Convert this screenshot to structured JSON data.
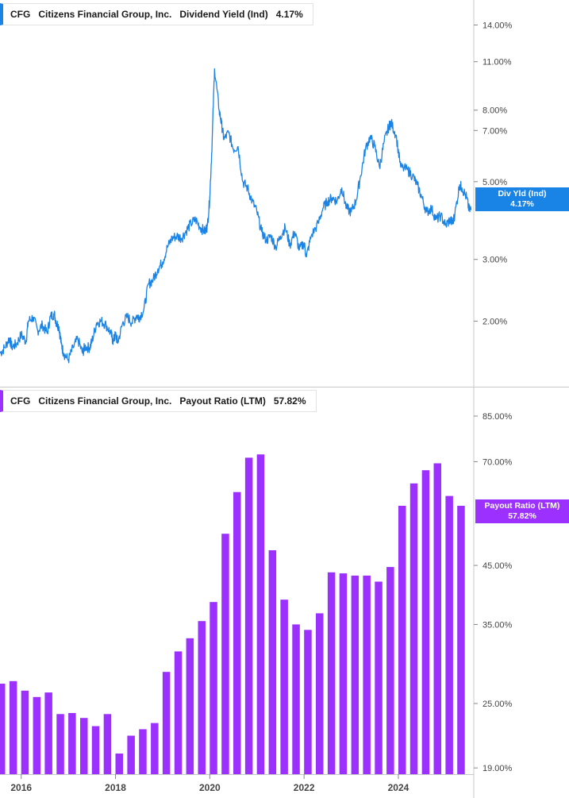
{
  "top_panel": {
    "legend": {
      "ticker": "CFG",
      "company": "Citizens Financial Group, Inc.",
      "metric": "Dividend Yield (Ind)",
      "value": "4.17%"
    },
    "tag": {
      "label": "Div Yld (Ind)",
      "value": "4.17%"
    }
  },
  "bottom_panel": {
    "legend": {
      "ticker": "CFG",
      "company": "Citizens Financial Group, Inc.",
      "metric": "Payout Ratio (LTM)",
      "value": "57.82%"
    },
    "tag": {
      "label": "Payout Ratio (LTM)",
      "value": "57.82%"
    }
  },
  "colors": {
    "yield_line": "#1a83e6",
    "payout_bar": "#9b30ff",
    "axis": "#c8c8c8"
  },
  "chart_data": [
    {
      "type": "line",
      "title": "",
      "xlabel": "",
      "ylabel": "",
      "y_scale": "log",
      "ylim": [
        1.3,
        16.5
      ],
      "xlim": [
        2015.55,
        2025.6
      ],
      "yticks": [
        14,
        11,
        8,
        7,
        5,
        3,
        2
      ],
      "ytick_labels": [
        "14.00%",
        "11.00%",
        "8.00%",
        "7.00%",
        "5.00%",
        "3.00%",
        "2.00%"
      ],
      "series": [
        {
          "x": [
            2015.55,
            2015.65,
            2015.75,
            2015.8,
            2015.9,
            2016.0,
            2016.1,
            2016.15,
            2016.25,
            2016.35,
            2016.45,
            2016.55,
            2016.62,
            2016.7,
            2016.75,
            2016.8,
            2016.85,
            2016.9,
            2017.0,
            2017.1,
            2017.2,
            2017.3,
            2017.35,
            2017.45,
            2017.5,
            2017.6,
            2017.7,
            2017.8,
            2017.9,
            2017.95,
            2018.0,
            2018.05,
            2018.15,
            2018.25,
            2018.35,
            2018.45,
            2018.5,
            2018.6,
            2018.7,
            2018.8,
            2018.9,
            2019.0,
            2019.1,
            2019.2,
            2019.3,
            2019.4,
            2019.5,
            2019.6,
            2019.7,
            2019.8,
            2019.9,
            2019.95,
            2020.0,
            2020.05,
            2020.1,
            2020.2,
            2020.25,
            2020.3,
            2020.4,
            2020.5,
            2020.6,
            2020.7,
            2020.8,
            2020.9,
            2021.0,
            2021.1,
            2021.2,
            2021.3,
            2021.4,
            2021.5,
            2021.6,
            2021.7,
            2021.8,
            2021.9,
            2022.0,
            2022.05,
            2022.15,
            2022.3,
            2022.4,
            2022.5,
            2022.6,
            2022.7,
            2022.8,
            2022.9,
            2023.0,
            2023.1,
            2023.2,
            2023.3,
            2023.4,
            2023.5,
            2023.6,
            2023.7,
            2023.8,
            2023.85,
            2023.95,
            2024.05,
            2024.2,
            2024.3,
            2024.4,
            2024.5,
            2024.6,
            2024.7,
            2024.8,
            2024.9,
            2025.0,
            2025.1,
            2025.15,
            2025.2,
            2025.3,
            2025.35,
            2025.45,
            2025.5,
            2025.55
          ],
          "y": [
            1.62,
            1.68,
            1.79,
            1.69,
            1.72,
            1.83,
            1.75,
            2.0,
            2.05,
            1.88,
            1.95,
            1.85,
            2.06,
            2.1,
            1.97,
            1.93,
            1.72,
            1.62,
            1.55,
            1.68,
            1.78,
            1.62,
            1.69,
            1.68,
            1.75,
            1.98,
            2.0,
            1.95,
            1.85,
            1.75,
            1.83,
            1.74,
            1.97,
            2.06,
            1.98,
            2.08,
            2.05,
            2.15,
            2.55,
            2.63,
            2.82,
            2.95,
            3.25,
            3.45,
            3.5,
            3.45,
            3.62,
            3.8,
            3.9,
            3.7,
            3.6,
            3.75,
            4.5,
            6.5,
            10.5,
            8.0,
            7.3,
            6.6,
            6.9,
            6.2,
            6.3,
            5.0,
            4.8,
            4.4,
            4.1,
            3.6,
            3.4,
            3.5,
            3.25,
            3.5,
            3.7,
            3.3,
            3.6,
            3.2,
            3.35,
            3.05,
            3.5,
            3.8,
            4.2,
            4.4,
            4.5,
            4.4,
            4.8,
            4.2,
            4.1,
            4.4,
            5.2,
            6.2,
            6.7,
            6.3,
            5.5,
            6.5,
            7.2,
            7.35,
            6.8,
            5.5,
            5.4,
            5.2,
            4.9,
            4.5,
            4.1,
            4.2,
            3.9,
            4.0,
            3.75,
            3.9,
            3.8,
            4.05,
            4.9,
            4.8,
            4.5,
            4.15,
            4.17
          ]
        }
      ]
    },
    {
      "type": "bar",
      "title": "",
      "xlabel": "",
      "ylabel": "",
      "y_scale": "log",
      "ylim": [
        18.5,
        96
      ],
      "xlim": [
        2015.55,
        2025.6
      ],
      "yticks": [
        85,
        70,
        45,
        35,
        25,
        19
      ],
      "ytick_labels": [
        "85.00%",
        "70.00%",
        "45.00%",
        "35.00%",
        "25.00%",
        "19.00%"
      ],
      "xticks": [
        2016,
        2018,
        2020,
        2022,
        2024
      ],
      "xtick_labels": [
        "2016",
        "2018",
        "2020",
        "2022",
        "2024"
      ],
      "x": [
        2015.58,
        2015.83,
        2016.08,
        2016.33,
        2016.58,
        2016.83,
        2017.08,
        2017.33,
        2017.58,
        2017.83,
        2018.08,
        2018.33,
        2018.58,
        2018.83,
        2019.08,
        2019.33,
        2019.58,
        2019.83,
        2020.08,
        2020.33,
        2020.58,
        2020.83,
        2021.08,
        2021.33,
        2021.58,
        2021.83,
        2022.08,
        2022.33,
        2022.58,
        2022.83,
        2023.08,
        2023.33,
        2023.58,
        2023.83,
        2024.08,
        2024.33,
        2024.58,
        2024.83,
        2025.08,
        2025.33
      ],
      "values": [
        27.2,
        27.5,
        26.4,
        25.7,
        26.2,
        23.9,
        24.0,
        23.5,
        22.7,
        23.9,
        20.2,
        21.8,
        22.4,
        23.0,
        28.6,
        31.2,
        33.0,
        35.5,
        38.5,
        51.5,
        61.5,
        71.2,
        72.2,
        48.0,
        38.9,
        35.0,
        34.2,
        36.7,
        43.7,
        43.5,
        43.1,
        43.1,
        42.0,
        44.7,
        58.0,
        63.8,
        67.5,
        69.5,
        60.5,
        58.0
      ]
    }
  ]
}
